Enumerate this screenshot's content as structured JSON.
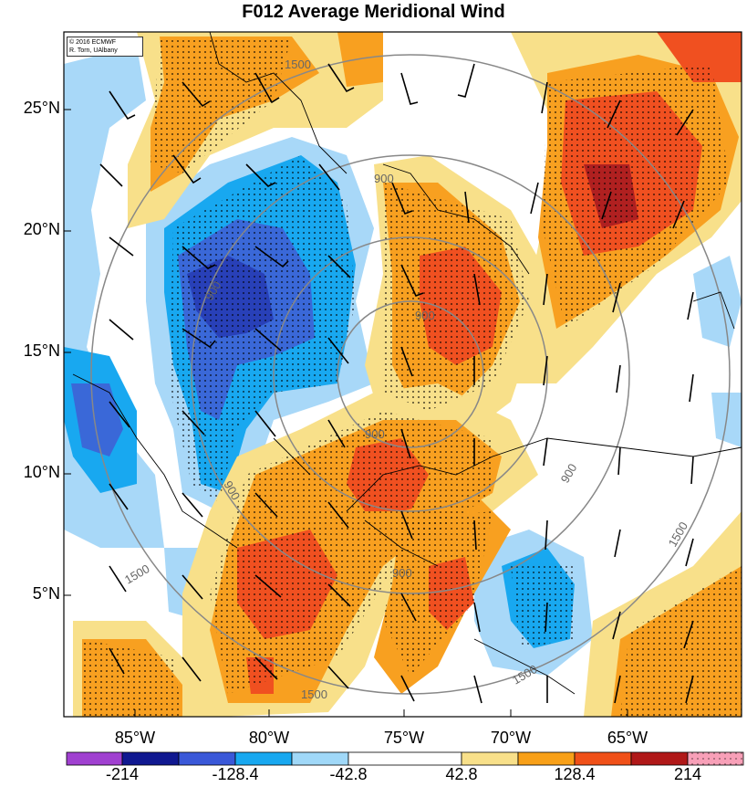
{
  "title": "F012 Average Meridional Wind",
  "credit": {
    "line1": "© 2016 ECMWF",
    "line2": "R. Torn, UAlbany"
  },
  "axes": {
    "lat_labels": [
      "25°N",
      "20°N",
      "15°N",
      "10°N",
      "5°N"
    ],
    "lon_labels": [
      "85°W",
      "80°W",
      "75°W",
      "70°W",
      "65°W"
    ]
  },
  "contour_labels": [
    "1500",
    "900",
    "900",
    "900",
    "900",
    "900",
    "900",
    "1500",
    "1500",
    "1500",
    "1500",
    "900"
  ],
  "colorbar": {
    "labels": [
      "-214",
      "-128.4",
      "-42.8",
      "42.8",
      "128.4",
      "214"
    ],
    "colors": [
      "#a040d0",
      "#101890",
      "#3a58d8",
      "#18a8f0",
      "#a0d8f8",
      "#ffffff",
      "#f8e08a",
      "#f8a018",
      "#f05018",
      "#b01818",
      "#f8a0b8"
    ]
  },
  "colors": {
    "strong_neg": "#2840b8",
    "mid_neg": "#3a68d8",
    "light_neg": "#18a8f0",
    "faint_neg": "#a8d8f8",
    "faint_pos": "#f8e08a",
    "mid_pos": "#f8a020",
    "strong_pos": "#f05020",
    "max_pos": "#b02020"
  }
}
